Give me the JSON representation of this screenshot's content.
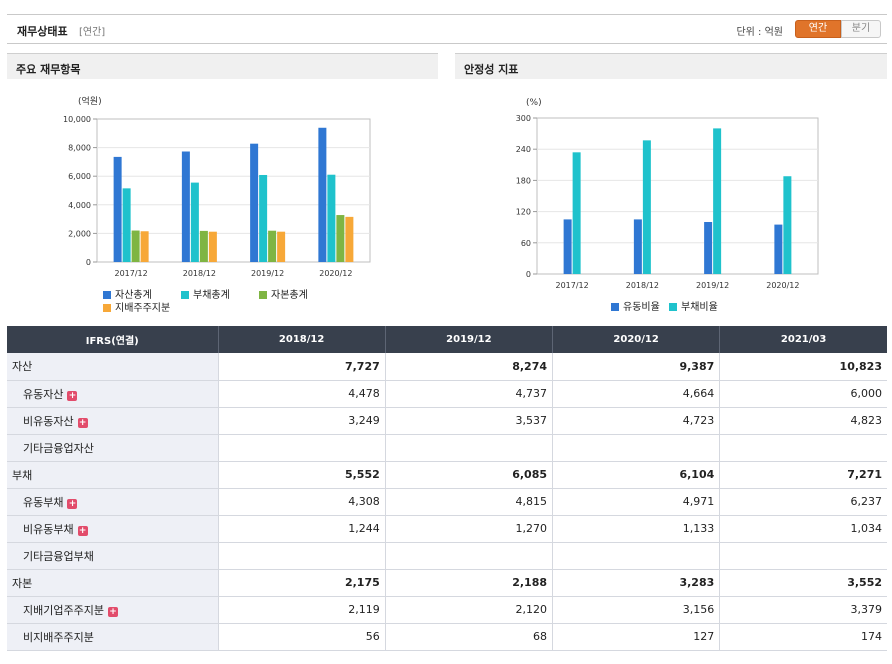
{
  "header": {
    "title": "재무상태표",
    "period_tag": "[연간]",
    "unit_label": "단위 : 억원",
    "tabs": [
      {
        "label": "연간",
        "active": true
      },
      {
        "label": "분기",
        "active": false
      }
    ]
  },
  "panels": {
    "left_title": "주요 재무항목",
    "right_title": "안정성 지표"
  },
  "colors": {
    "accent": "#e0742a",
    "table_header": "#38404d",
    "label_bg": "#eef0f6",
    "plus_icon": "#e24c6b"
  },
  "chart_data": [
    {
      "type": "bar",
      "unit_label": "(억원)",
      "categories": [
        "2017/12",
        "2018/12",
        "2019/12",
        "2020/12"
      ],
      "ylim": [
        0,
        10000
      ],
      "yticks": [
        0,
        2000,
        4000,
        6000,
        8000,
        10000
      ],
      "ytick_labels": [
        "0",
        "2,000",
        "4,000",
        "6,000",
        "8,000",
        "10,000"
      ],
      "grid": true,
      "series": [
        {
          "name": "자산총계",
          "color": "#2f77d3",
          "values": [
            7350,
            7727,
            8274,
            9387
          ]
        },
        {
          "name": "부채총계",
          "color": "#1fc2cc",
          "values": [
            5150,
            5552,
            6085,
            6104
          ]
        },
        {
          "name": "자본총계",
          "color": "#7fb543",
          "values": [
            2200,
            2175,
            2188,
            3283
          ]
        },
        {
          "name": "지배주주지분",
          "color": "#f7a838",
          "values": [
            2150,
            2119,
            2120,
            3156
          ]
        }
      ]
    },
    {
      "type": "bar",
      "unit_label": "(%)",
      "categories": [
        "2017/12",
        "2018/12",
        "2019/12",
        "2020/12"
      ],
      "ylim": [
        0,
        300
      ],
      "yticks": [
        0,
        60,
        120,
        180,
        240,
        300
      ],
      "ytick_labels": [
        "0",
        "60",
        "120",
        "180",
        "240",
        "300"
      ],
      "grid": true,
      "series": [
        {
          "name": "유동비율",
          "color": "#2f77d3",
          "values": [
            105,
            105,
            100,
            95
          ]
        },
        {
          "name": "부채비율",
          "color": "#1fc2cc",
          "values": [
            234,
            257,
            280,
            188
          ]
        }
      ]
    }
  ],
  "table": {
    "header_label": "IFRS(연결)",
    "columns": [
      "2018/12",
      "2019/12",
      "2020/12",
      "2021/03"
    ],
    "rows": [
      {
        "label": "자산",
        "level": "main",
        "plus": false,
        "values": [
          "7,727",
          "8,274",
          "9,387",
          "10,823"
        ]
      },
      {
        "label": "유동자산",
        "level": "sub",
        "plus": true,
        "values": [
          "4,478",
          "4,737",
          "4,664",
          "6,000"
        ]
      },
      {
        "label": "비유동자산",
        "level": "sub",
        "plus": true,
        "values": [
          "3,249",
          "3,537",
          "4,723",
          "4,823"
        ]
      },
      {
        "label": "기타금융업자산",
        "level": "sub",
        "plus": false,
        "values": [
          "",
          "",
          "",
          ""
        ]
      },
      {
        "label": "부채",
        "level": "main",
        "plus": false,
        "values": [
          "5,552",
          "6,085",
          "6,104",
          "7,271"
        ]
      },
      {
        "label": "유동부채",
        "level": "sub",
        "plus": true,
        "values": [
          "4,308",
          "4,815",
          "4,971",
          "6,237"
        ]
      },
      {
        "label": "비유동부채",
        "level": "sub",
        "plus": true,
        "values": [
          "1,244",
          "1,270",
          "1,133",
          "1,034"
        ]
      },
      {
        "label": "기타금융업부채",
        "level": "sub",
        "plus": false,
        "values": [
          "",
          "",
          "",
          ""
        ]
      },
      {
        "label": "자본",
        "level": "main",
        "plus": false,
        "values": [
          "2,175",
          "2,188",
          "3,283",
          "3,552"
        ]
      },
      {
        "label": "지배기업주주지분",
        "level": "sub",
        "plus": true,
        "values": [
          "2,119",
          "2,120",
          "3,156",
          "3,379"
        ]
      },
      {
        "label": "비지배주주지분",
        "level": "sub",
        "plus": false,
        "values": [
          "56",
          "68",
          "127",
          "174"
        ]
      }
    ]
  }
}
